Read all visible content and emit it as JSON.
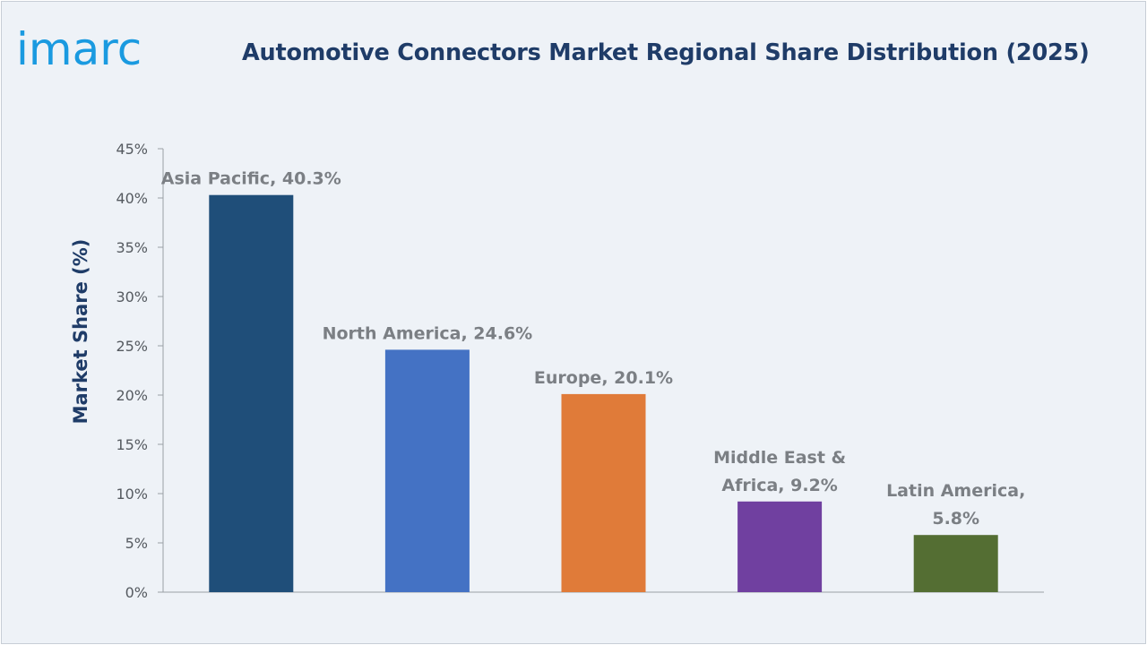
{
  "logo": {
    "text": "imarc"
  },
  "colors": {
    "background": "#eef2f7",
    "title": "#1f3c68",
    "logo": "#1a9ae0",
    "axis": "#9aa0a6",
    "data_label": "#7b7f84"
  },
  "chart_data": {
    "type": "bar",
    "title": "Automotive Connectors Market Regional Share Distribution (2025)",
    "xlabel": "",
    "ylabel": "Market Share (%)",
    "ylim": [
      0,
      45
    ],
    "y_ticks": [
      0,
      5,
      10,
      15,
      20,
      25,
      30,
      35,
      40,
      45
    ],
    "y_tick_format": "%",
    "grid": false,
    "legend": "none",
    "categories": [
      "Asia Pacific",
      "North America",
      "Europe",
      "Middle East & Africa",
      "Latin America"
    ],
    "values": [
      40.3,
      24.6,
      20.1,
      9.2,
      5.8
    ],
    "bar_colors": [
      "#1f4e79",
      "#4472c4",
      "#e07b39",
      "#7040a0",
      "#546e33"
    ],
    "data_labels": [
      [
        "Asia Pacific, 40.3%"
      ],
      [
        "North America, 24.6%"
      ],
      [
        "Europe, 20.1%"
      ],
      [
        "Middle East &",
        "Africa, 9.2%"
      ],
      [
        "Latin America,",
        "5.8%"
      ]
    ]
  }
}
